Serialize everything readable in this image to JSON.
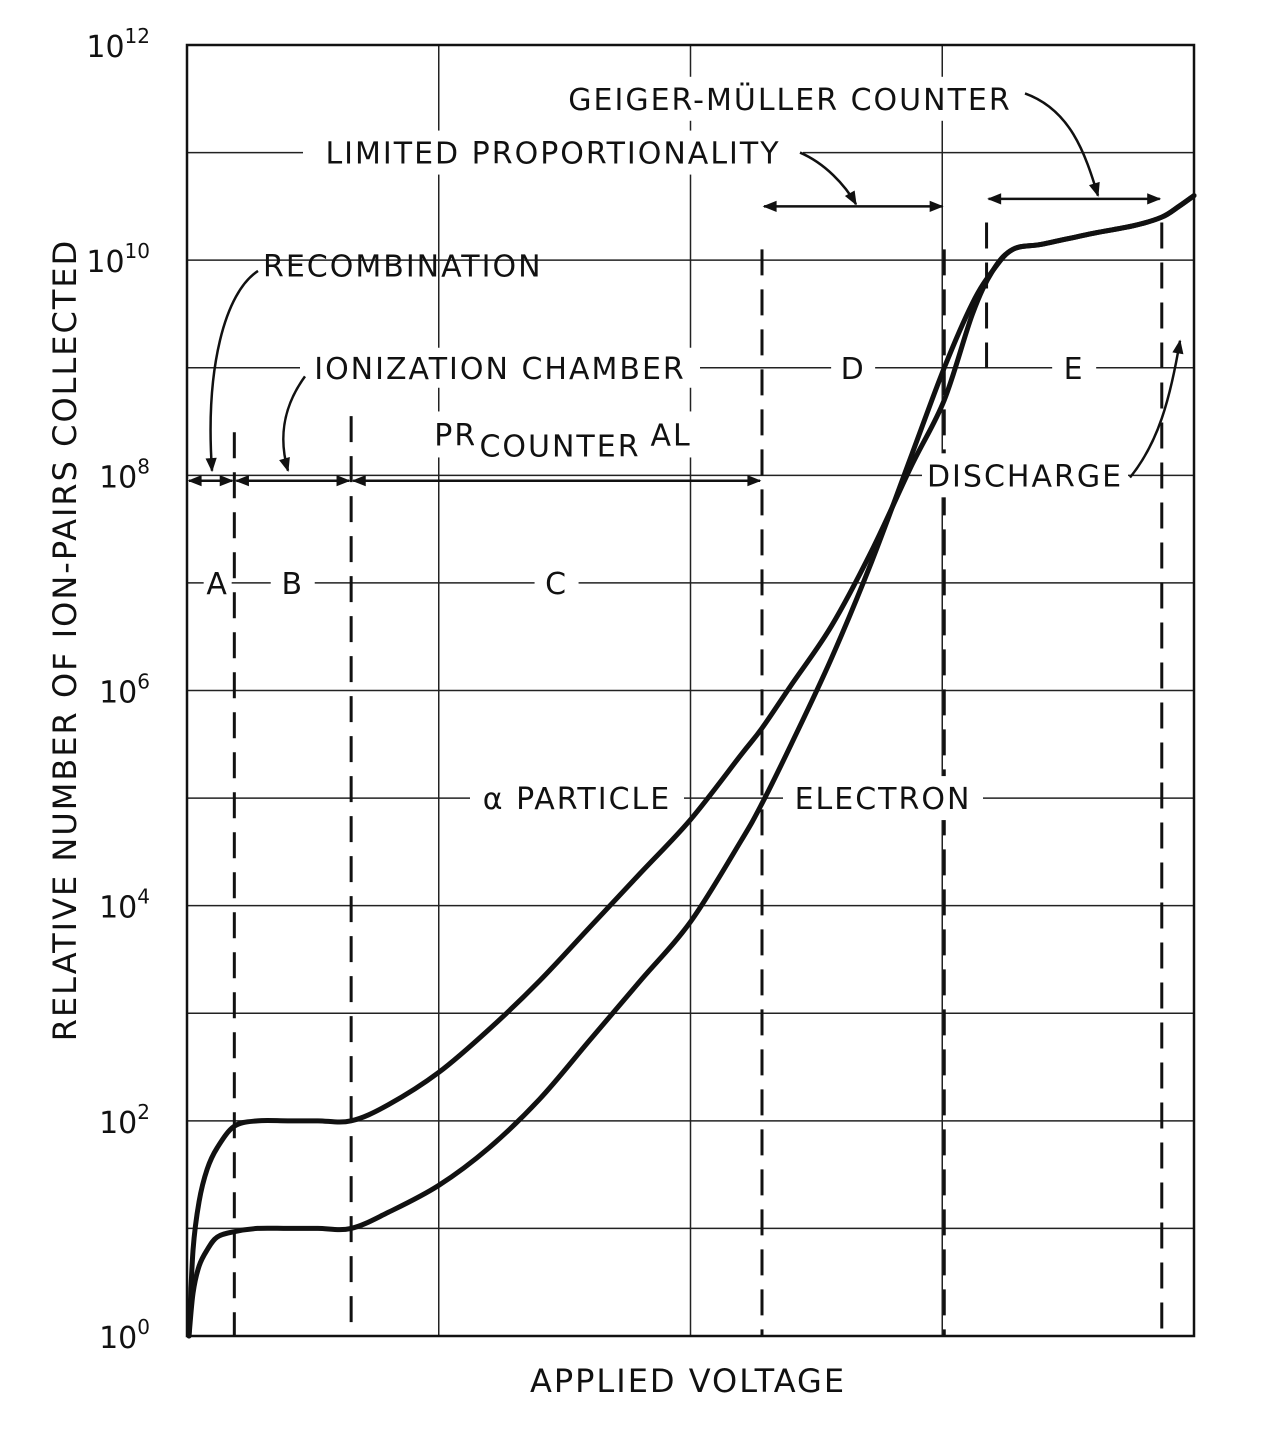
{
  "chart_data": {
    "type": "line",
    "xlabel": "APPLIED VOLTAGE",
    "ylabel": "RELATIVE NUMBER OF ION-PAIRS COLLECTED",
    "yscale": "log",
    "ylim_exponent": [
      0,
      12
    ],
    "xlim": [
      0,
      1
    ],
    "ytick_labels": [
      {
        "base": "10",
        "exp": "0",
        "value_exp": 0
      },
      {
        "base": "10",
        "exp": "2",
        "value_exp": 2
      },
      {
        "base": "10",
        "exp": "4",
        "value_exp": 4
      },
      {
        "base": "10",
        "exp": "6",
        "value_exp": 6
      },
      {
        "base": "10",
        "exp": "8",
        "value_exp": 8
      },
      {
        "base": "10",
        "exp": "10",
        "value_exp": 10
      },
      {
        "base": "10",
        "exp": "12",
        "value_exp": 12
      }
    ],
    "grid": true,
    "region_boundaries_x": [
      0.047,
      0.163,
      0.571,
      0.752,
      0.968
    ],
    "regions": [
      {
        "letter": "A",
        "name": "RECOMBINATION",
        "x_start": 0.0,
        "x_end": 0.047
      },
      {
        "letter": "B",
        "name": "IONIZATION CHAMBER",
        "x_start": 0.047,
        "x_end": 0.163
      },
      {
        "letter": "C",
        "name_line1": "PROPORTIONAL",
        "name_line2": "COUNTER",
        "x_start": 0.163,
        "x_end": 0.571
      },
      {
        "letter": "D",
        "name": "LIMITED PROPORTIONALITY",
        "x_start": 0.571,
        "x_end": 0.752
      },
      {
        "letter": "E",
        "name": "GEIGER-MÜLLER COUNTER",
        "x_start": 0.794,
        "x_end": 0.968
      }
    ],
    "discharge_label": "DISCHARGE",
    "series": [
      {
        "name": "α PARTICLE",
        "x": [
          0.002,
          0.006,
          0.012,
          0.02,
          0.03,
          0.047,
          0.07,
          0.1,
          0.13,
          0.163,
          0.2,
          0.25,
          0.3,
          0.35,
          0.4,
          0.45,
          0.5,
          0.55,
          0.571,
          0.6,
          0.64,
          0.68,
          0.72,
          0.752,
          0.78,
          0.8,
          0.82,
          0.85,
          0.9,
          0.94,
          0.968,
          0.985,
          1.0
        ],
        "y_exp": [
          0.0,
          0.8,
          1.25,
          1.55,
          1.75,
          1.95,
          2.0,
          2.0,
          2.0,
          2.0,
          2.15,
          2.45,
          2.85,
          3.3,
          3.8,
          4.3,
          4.8,
          5.4,
          5.65,
          6.05,
          6.6,
          7.3,
          8.1,
          8.7,
          9.5,
          9.9,
          10.1,
          10.15,
          10.25,
          10.32,
          10.4,
          10.5,
          10.6
        ]
      },
      {
        "name": "ELECTRON",
        "x": [
          0.002,
          0.006,
          0.012,
          0.02,
          0.03,
          0.047,
          0.07,
          0.1,
          0.13,
          0.163,
          0.2,
          0.25,
          0.3,
          0.35,
          0.4,
          0.45,
          0.5,
          0.55,
          0.571,
          0.6,
          0.64,
          0.68,
          0.72,
          0.752,
          0.78,
          0.8,
          0.82,
          0.85,
          0.9,
          0.94,
          0.968,
          0.985,
          1.0
        ],
        "y_exp": [
          0.0,
          0.4,
          0.65,
          0.8,
          0.92,
          0.97,
          1.0,
          1.0,
          1.0,
          1.0,
          1.15,
          1.4,
          1.75,
          2.2,
          2.75,
          3.3,
          3.85,
          4.6,
          4.95,
          5.5,
          6.3,
          7.2,
          8.2,
          9.0,
          9.6,
          9.9,
          10.1,
          10.15,
          10.25,
          10.32,
          10.4,
          10.5,
          10.6
        ]
      }
    ]
  }
}
